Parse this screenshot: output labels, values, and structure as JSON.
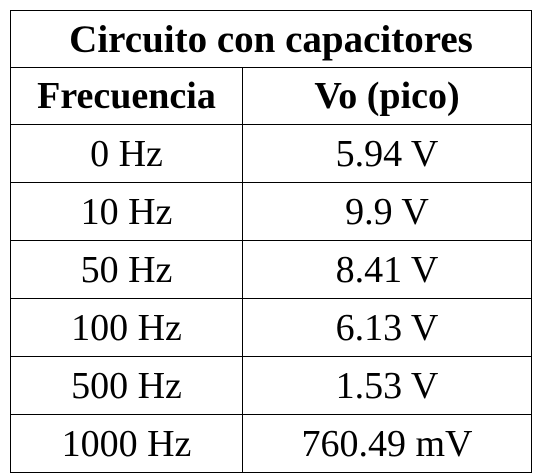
{
  "table": {
    "title": "Circuito con capacitores",
    "headers": [
      "Frecuencia",
      "Vo (pico)"
    ],
    "rows": [
      [
        "0 Hz",
        "5.94 V"
      ],
      [
        "10 Hz",
        "9.9 V"
      ],
      [
        "50 Hz",
        "8.41 V"
      ],
      [
        "100 Hz",
        "6.13 V"
      ],
      [
        "500 Hz",
        "1.53 V"
      ],
      [
        "1000 Hz",
        "760.49 mV"
      ]
    ]
  }
}
